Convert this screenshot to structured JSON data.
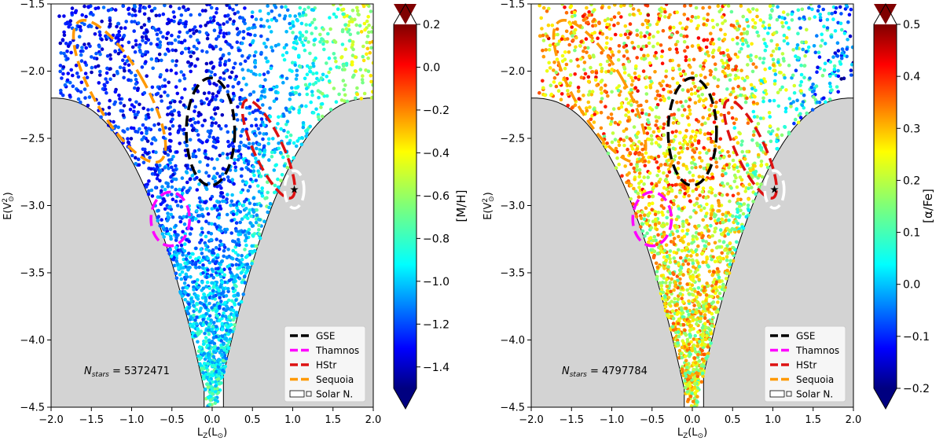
{
  "chart_data": [
    {
      "type": "scatter",
      "panel": "left",
      "xlabel": "L_Z(L_⊙)",
      "ylabel": "E(V²_⊙)",
      "xlim": [
        -2.0,
        2.0
      ],
      "ylim": [
        -4.5,
        -1.5
      ],
      "xticks": [
        -2.0,
        -1.5,
        -1.0,
        -0.5,
        0.0,
        0.5,
        1.0,
        1.5,
        2.0
      ],
      "xtick_labels": [
        "−2.0",
        "−1.5",
        "−1.0",
        "−0.5",
        "0.0",
        "0.5",
        "1.0",
        "1.5",
        "2.0"
      ],
      "yticks": [
        -1.5,
        -2.0,
        -2.5,
        -3.0,
        -3.5,
        -4.0,
        -4.5
      ],
      "ytick_labels": [
        "−1.5",
        "−2.0",
        "−2.5",
        "−3.0",
        "−3.5",
        "−4.0",
        "−4.5"
      ],
      "colorbar": {
        "label": "[M/H]",
        "range": [
          -1.5,
          0.2
        ],
        "ticks": [
          0.2,
          0.0,
          -0.2,
          -0.4,
          -0.6,
          -0.8,
          -1.0,
          -1.2,
          -1.4
        ],
        "tick_labels": [
          "0.2",
          "0.0",
          "−0.2",
          "−0.4",
          "−0.6",
          "−0.8",
          "−1.0",
          "−1.2",
          "−1.4"
        ]
      },
      "annotation": "N_stars = 5372471",
      "n_stars_label": "N",
      "n_stars_sub": "stars",
      "n_stars_value": " = 5372471",
      "regions": [
        {
          "name": "GSE",
          "color": "#000000",
          "center": [
            -0.02,
            -2.45
          ],
          "semi_x": 0.3,
          "semi_y": 0.4,
          "angle": 0
        },
        {
          "name": "Thamnos",
          "color": "#ff00ff",
          "center": [
            -0.52,
            -3.1
          ],
          "semi_x": 0.24,
          "semi_y": 0.2,
          "angle": 0
        },
        {
          "name": "HStr",
          "color": "#dd1111",
          "center": [
            0.7,
            -2.58
          ],
          "semi_x": 0.18,
          "semi_y": 0.4,
          "angle": -25
        },
        {
          "name": "Sequoia",
          "color": "#ff9900",
          "center": [
            -1.15,
            -2.15
          ],
          "semi_x": 0.32,
          "semi_y": 0.6,
          "angle": -30
        },
        {
          "name": "Solar N.",
          "color": "#ffffff",
          "center": [
            1.02,
            -2.88
          ],
          "semi_x": 0.12,
          "semi_y": 0.14,
          "angle": 0
        }
      ],
      "sun_marker": [
        1.02,
        -2.88
      ],
      "legend": [
        "GSE",
        "Thamnos",
        "HStr",
        "Sequoia",
        "Solar N."
      ],
      "legend_placement": "lower-right"
    },
    {
      "type": "scatter",
      "panel": "right",
      "xlabel": "L_Z(L_⊙)",
      "ylabel": "E(V²_⊙)",
      "xlim": [
        -2.0,
        2.0
      ],
      "ylim": [
        -4.5,
        -1.5
      ],
      "xticks": [
        -2.0,
        -1.5,
        -1.0,
        -0.5,
        0.0,
        0.5,
        1.0,
        1.5,
        2.0
      ],
      "xtick_labels": [
        "−2.0",
        "−1.5",
        "−1.0",
        "−0.5",
        "0.0",
        "0.5",
        "1.0",
        "1.5",
        "2.0"
      ],
      "yticks": [
        -1.5,
        -2.0,
        -2.5,
        -3.0,
        -3.5,
        -4.0,
        -4.5
      ],
      "ytick_labels": [
        "−1.5",
        "−2.0",
        "−2.5",
        "−3.0",
        "−3.5",
        "−4.0",
        "−4.5"
      ],
      "colorbar": {
        "label": "[α/Fe]",
        "range": [
          -0.2,
          0.5
        ],
        "ticks": [
          0.5,
          0.4,
          0.3,
          0.2,
          0.1,
          0.0,
          -0.1,
          -0.2
        ],
        "tick_labels": [
          "0.5",
          "0.4",
          "0.3",
          "0.2",
          "0.1",
          "0.0",
          "−0.1",
          "−0.2"
        ]
      },
      "annotation": "N_stars = 4797784",
      "n_stars_label": "N",
      "n_stars_sub": "stars",
      "n_stars_value": " = 4797784",
      "regions": [
        {
          "name": "GSE",
          "color": "#000000",
          "center": [
            0.0,
            -2.45
          ],
          "semi_x": 0.3,
          "semi_y": 0.4,
          "angle": 0
        },
        {
          "name": "Thamnos",
          "color": "#ff00ff",
          "center": [
            -0.5,
            -3.1
          ],
          "semi_x": 0.24,
          "semi_y": 0.2,
          "angle": 0
        },
        {
          "name": "HStr",
          "color": "#dd1111",
          "center": [
            0.72,
            -2.58
          ],
          "semi_x": 0.18,
          "semi_y": 0.4,
          "angle": -25
        },
        {
          "name": "Sequoia",
          "color": "#ff9900",
          "center": [
            -1.15,
            -2.15
          ],
          "semi_x": 0.32,
          "semi_y": 0.6,
          "angle": -30
        },
        {
          "name": "Solar N.",
          "color": "#ffffff",
          "center": [
            1.02,
            -2.88
          ],
          "semi_x": 0.12,
          "semi_y": 0.14,
          "angle": 0
        }
      ],
      "sun_marker": [
        1.02,
        -2.88
      ],
      "legend": [
        "GSE",
        "Thamnos",
        "HStr",
        "Sequoia",
        "Solar N."
      ],
      "legend_placement": "lower-right"
    }
  ]
}
